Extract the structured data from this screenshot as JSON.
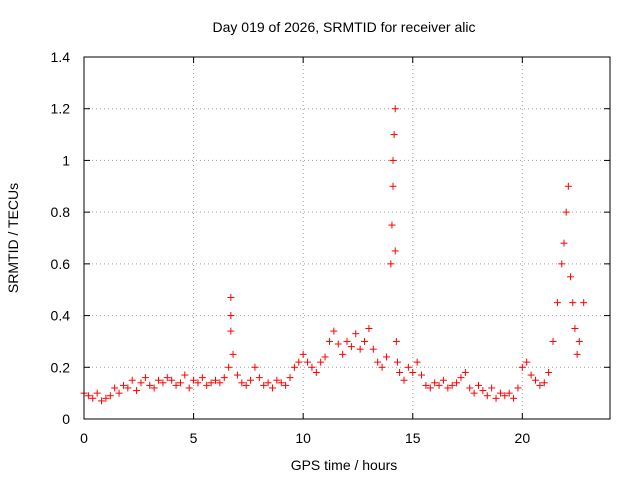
{
  "chart_data": {
    "type": "scatter",
    "title": "Day 019 of 2026, SRMTID for receiver alic",
    "xlabel": "GPS time / hours",
    "ylabel": "SRMTID / TECUs",
    "xlim": [
      0,
      24
    ],
    "ylim": [
      0,
      1.4
    ],
    "xticks": [
      0,
      5,
      10,
      15,
      20
    ],
    "xtick_labels": [
      "0",
      "5",
      "10",
      "15",
      "20"
    ],
    "yticks": [
      0,
      0.2,
      0.4,
      0.6,
      0.8,
      1.0,
      1.2,
      1.4
    ],
    "ytick_labels": [
      "0",
      "0.2",
      "0.4",
      "0.6",
      "0.8",
      "1",
      "1.2",
      "1.4"
    ],
    "grid": true,
    "marker": "+",
    "marker_color": "#ff0000",
    "series": [
      {
        "name": "SRMTID",
        "x": [
          0.0,
          0.2,
          0.4,
          0.6,
          0.8,
          1.0,
          1.2,
          1.4,
          1.6,
          1.8,
          2.0,
          2.2,
          2.4,
          2.6,
          2.8,
          3.0,
          3.2,
          3.4,
          3.6,
          3.8,
          4.0,
          4.2,
          4.4,
          4.6,
          4.8,
          5.0,
          5.2,
          5.4,
          5.6,
          5.8,
          6.0,
          6.2,
          6.4,
          6.6,
          6.7,
          6.7,
          6.7,
          6.8,
          7.0,
          7.2,
          7.4,
          7.6,
          7.8,
          8.0,
          8.2,
          8.4,
          8.6,
          8.8,
          9.0,
          9.2,
          9.4,
          9.6,
          9.8,
          10.0,
          10.2,
          10.4,
          10.6,
          10.8,
          11.0,
          11.2,
          11.4,
          11.6,
          11.8,
          12.0,
          12.2,
          12.4,
          12.6,
          12.8,
          13.0,
          13.2,
          13.4,
          13.6,
          13.8,
          14.0,
          14.05,
          14.1,
          14.1,
          14.15,
          14.2,
          14.2,
          14.25,
          14.3,
          14.4,
          14.6,
          14.8,
          15.0,
          15.2,
          15.4,
          15.6,
          15.8,
          16.0,
          16.2,
          16.4,
          16.6,
          16.8,
          17.0,
          17.2,
          17.4,
          17.6,
          17.8,
          18.0,
          18.2,
          18.4,
          18.6,
          18.8,
          19.0,
          19.2,
          19.4,
          19.6,
          19.8,
          20.0,
          20.2,
          20.4,
          20.6,
          20.8,
          21.0,
          21.2,
          21.4,
          21.6,
          21.8,
          21.9,
          22.0,
          22.1,
          22.2,
          22.3,
          22.4,
          22.5,
          22.6,
          22.8
        ],
        "y": [
          0.1,
          0.09,
          0.08,
          0.1,
          0.07,
          0.08,
          0.09,
          0.12,
          0.1,
          0.13,
          0.12,
          0.15,
          0.11,
          0.14,
          0.16,
          0.13,
          0.12,
          0.15,
          0.14,
          0.16,
          0.15,
          0.13,
          0.14,
          0.17,
          0.12,
          0.15,
          0.14,
          0.16,
          0.13,
          0.14,
          0.15,
          0.14,
          0.16,
          0.2,
          0.47,
          0.4,
          0.34,
          0.25,
          0.17,
          0.14,
          0.13,
          0.15,
          0.2,
          0.16,
          0.13,
          0.14,
          0.12,
          0.15,
          0.14,
          0.13,
          0.16,
          0.2,
          0.22,
          0.25,
          0.22,
          0.2,
          0.18,
          0.22,
          0.24,
          0.3,
          0.34,
          0.29,
          0.25,
          0.3,
          0.28,
          0.33,
          0.27,
          0.3,
          0.35,
          0.27,
          0.22,
          0.2,
          0.24,
          0.6,
          0.75,
          0.9,
          1.0,
          1.1,
          1.2,
          0.65,
          0.3,
          0.22,
          0.18,
          0.15,
          0.2,
          0.18,
          0.22,
          0.17,
          0.13,
          0.12,
          0.14,
          0.13,
          0.15,
          0.12,
          0.13,
          0.14,
          0.16,
          0.18,
          0.12,
          0.1,
          0.13,
          0.11,
          0.09,
          0.12,
          0.08,
          0.1,
          0.09,
          0.1,
          0.08,
          0.12,
          0.2,
          0.22,
          0.17,
          0.15,
          0.13,
          0.14,
          0.18,
          0.3,
          0.45,
          0.6,
          0.68,
          0.8,
          0.9,
          0.55,
          0.45,
          0.35,
          0.25,
          0.3,
          0.45
        ]
      }
    ]
  }
}
